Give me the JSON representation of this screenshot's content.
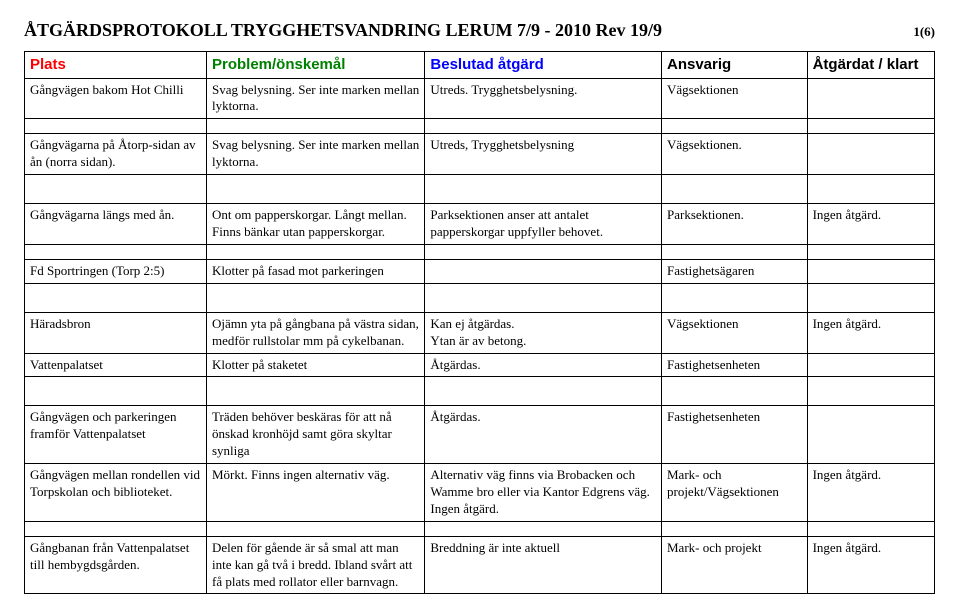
{
  "header": {
    "title": "ÅTGÄRDSPROTOKOLL TRYGGHETSVANDRING LERUM 7/9 - 2010    Rev 19/9",
    "page_no": "1(6)"
  },
  "columns": {
    "c0": "Plats",
    "c1": "Problem/önskemål",
    "c2": "Beslutad åtgärd",
    "c3": "Ansvarig",
    "c4": "Åtgärdat / klart"
  },
  "colors": {
    "header_plats": "#ff0000",
    "header_problem": "#008000",
    "header_atgard": "#0000ff",
    "header_ansvar": "#000000",
    "header_klart": "#000000"
  },
  "rows": [
    {
      "kind": "data",
      "c0": "Gångvägen bakom Hot Chilli",
      "c1": "Svag belysning. Ser inte marken mellan lyktorna.",
      "c2": "Utreds. Trygghetsbelysning.",
      "c3": "Vägsektionen",
      "c4": ""
    },
    {
      "kind": "spacer"
    },
    {
      "kind": "data",
      "c0": "Gångvägarna på Åtorp-sidan av ån (norra sidan).",
      "c1": "Svag belysning. Ser inte marken mellan lyktorna.",
      "c2": "Utreds, Trygghetsbelysning",
      "c3": "Vägsektionen.",
      "c4": ""
    },
    {
      "kind": "spacer"
    },
    {
      "kind": "spacer"
    },
    {
      "kind": "data",
      "c0": "Gångvägarna längs med ån.",
      "c1": "Ont om papperskorgar. Långt mellan. Finns bänkar utan papperskorgar.",
      "c2": "Parksektionen anser att antalet papperskorgar uppfyller behovet.",
      "c3": "Parksektionen.",
      "c4": "Ingen åtgärd."
    },
    {
      "kind": "spacer"
    },
    {
      "kind": "data",
      "c0": "Fd Sportringen (Torp 2:5)",
      "c1": "Klotter på fasad mot parkeringen",
      "c2": "",
      "c3": "Fastighetsägaren",
      "c4": ""
    },
    {
      "kind": "spacer"
    },
    {
      "kind": "spacer"
    },
    {
      "kind": "data",
      "c0": "Häradsbron",
      "c1": "Ojämn yta på gångbana på västra sidan, medför rullstolar mm på cykelbanan.",
      "c2": "Kan ej åtgärdas.\nYtan är av betong.",
      "c3": "Vägsektionen",
      "c4": "Ingen åtgärd."
    },
    {
      "kind": "data",
      "c0": "Vattenpalatset",
      "c1": "Klotter på staketet",
      "c2": "Åtgärdas.",
      "c3": "Fastighetsenheten",
      "c4": ""
    },
    {
      "kind": "spacer"
    },
    {
      "kind": "spacer"
    },
    {
      "kind": "data",
      "c0": "Gångvägen och parkeringen framför Vattenpalatset",
      "c1": "Träden behöver beskäras för att nå önskad kronhöjd samt göra skyltar synliga",
      "c2": "Åtgärdas.",
      "c3": "Fastighetsenheten",
      "c4": ""
    },
    {
      "kind": "data",
      "c0": "Gångvägen mellan rondellen vid Torpskolan och biblioteket.",
      "c1": "Mörkt. Finns ingen alternativ väg.",
      "c2": "Alternativ väg finns via Brobacken och Wamme bro eller via Kantor Edgrens väg. Ingen åtgärd.",
      "c3": "Mark- och projekt/Vägsektionen",
      "c4": "Ingen åtgärd."
    },
    {
      "kind": "spacer"
    },
    {
      "kind": "data",
      "c0": "Gångbanan från Vattenpalatset till hembygdsgården.",
      "c1": "Delen för gående är så smal att man inte kan gå två i bredd. Ibland svårt att få plats med rollator eller barnvagn.",
      "c2": "Breddning är inte aktuell",
      "c3": "Mark- och projekt",
      "c4": "Ingen åtgärd."
    }
  ]
}
